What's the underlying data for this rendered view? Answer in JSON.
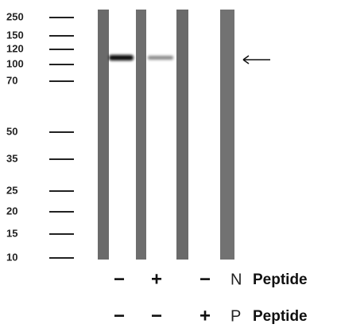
{
  "markers": [
    "250",
    "150",
    "120",
    "100",
    "70",
    "50",
    "35",
    "25",
    "20",
    "15",
    "10"
  ],
  "treatments": [
    {
      "signs": [
        "−",
        "+",
        "−"
      ],
      "letter": "N",
      "label": "Peptide"
    },
    {
      "signs": [
        "−",
        "−",
        "+"
      ],
      "letter": "P",
      "label": "Peptide"
    }
  ]
}
